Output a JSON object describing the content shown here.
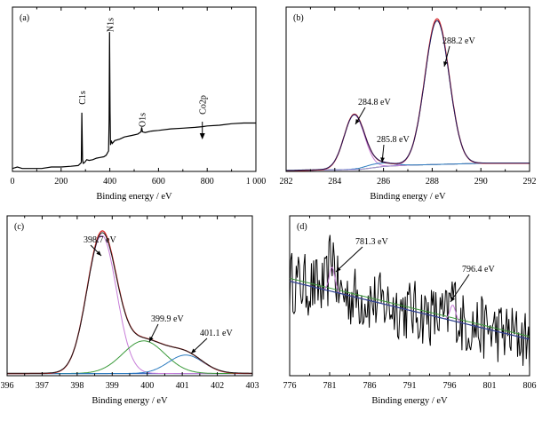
{
  "chart_data": [
    {
      "type": "line",
      "panel_label": "(a)",
      "xlabel": "Binding energy / eV",
      "ylabel": "",
      "xlim": [
        0,
        1000
      ],
      "x_ticks": [
        0,
        200,
        400,
        600,
        800,
        1000
      ],
      "x_tick_labels": [
        "0",
        "200",
        "400",
        "600",
        "800",
        "1 000"
      ],
      "series": [
        {
          "color": "#000000",
          "x": [
            0,
            20,
            40,
            80,
            120,
            160,
            200,
            240,
            270,
            283,
            285,
            288,
            291,
            296,
            305,
            315,
            330,
            345,
            360,
            375,
            385,
            395,
            397,
            399,
            401,
            403,
            406,
            410,
            420,
            440,
            460,
            490,
            515,
            528,
            531,
            534,
            545,
            570,
            600,
            650,
            700,
            750,
            780,
            800,
            850,
            900,
            950,
            1000
          ],
          "y": [
            2,
            3,
            2,
            2,
            2,
            3,
            3,
            3.5,
            4,
            6,
            40,
            8,
            5.5,
            6,
            8,
            7.5,
            8,
            9,
            9.5,
            10,
            11,
            14,
            35,
            95,
            40,
            18,
            21,
            19,
            21,
            22,
            23.5,
            24.5,
            25.5,
            27,
            30,
            27,
            26.5,
            27.5,
            28,
            29,
            29.5,
            30,
            30.5,
            31,
            31.5,
            32.5,
            33,
            33
          ]
        }
      ],
      "annotations": [
        {
          "text": "C1s",
          "x": 285
        },
        {
          "text": "N1s",
          "x": 399
        },
        {
          "text": "O1s",
          "x": 531
        },
        {
          "text": "Co2p",
          "x": 780
        }
      ]
    },
    {
      "type": "line",
      "panel_label": "(b)",
      "xlabel": "Binding energy / eV",
      "ylabel": "",
      "xlim": [
        282,
        292
      ],
      "x_ticks": [
        282,
        284,
        286,
        288,
        290,
        292
      ],
      "x_tick_labels": [
        "282",
        "284",
        "286",
        "288",
        "290",
        "292"
      ],
      "peaks": [
        {
          "center": 284.8,
          "height": 44,
          "sigma": 0.42,
          "label": "284.8 eV",
          "color": "#c77dd8"
        },
        {
          "center": 285.8,
          "height": 3,
          "sigma": 0.55,
          "label": "285.8 eV",
          "color": "#2b7bbf"
        },
        {
          "center": 288.2,
          "height": 117,
          "sigma": 0.5,
          "label": "288.2 eV",
          "color": "#a58ad8"
        }
      ],
      "background": {
        "color": "#3a9a3a",
        "points": [
          [
            282,
            0.5
          ],
          [
            283,
            1
          ],
          [
            285,
            1.5
          ],
          [
            286,
            4
          ],
          [
            287,
            5
          ],
          [
            288,
            5.5
          ],
          [
            289,
            6
          ],
          [
            290,
            6.5
          ],
          [
            291,
            6.5
          ],
          [
            292,
            6.5
          ]
        ]
      },
      "envelope_color": "#d92a2a",
      "measured_color": "#1a1a5c",
      "ylim": [
        0,
        132
      ]
    },
    {
      "type": "line",
      "panel_label": "(c)",
      "xlabel": "Binding energy / eV",
      "ylabel": "",
      "xlim": [
        396,
        403
      ],
      "x_ticks": [
        396,
        397,
        398,
        399,
        400,
        401,
        402,
        403
      ],
      "x_tick_labels": [
        "396",
        "397",
        "398",
        "399",
        "400",
        "401",
        "402",
        "403"
      ],
      "peaks": [
        {
          "center": 398.7,
          "height": 127,
          "sigma": 0.42,
          "label": "398.7 eV",
          "color": "#c77dd8"
        },
        {
          "center": 399.9,
          "height": 30,
          "sigma": 0.6,
          "label": "399.9 eV",
          "color": "#3a9a3a"
        },
        {
          "center": 401.1,
          "height": 17,
          "sigma": 0.5,
          "label": "401.1 eV",
          "color": "#2b7bbf"
        }
      ],
      "background": {
        "color": "#2b5fbf",
        "points": [
          [
            396,
            0
          ],
          [
            403,
            0
          ]
        ]
      },
      "envelope_color": "#d92a2a",
      "measured_color": "#1a1a1a",
      "ylim": [
        -2,
        145
      ]
    },
    {
      "type": "line",
      "panel_label": "(d)",
      "xlabel": "Binding energy / eV",
      "ylabel": "",
      "xlim": [
        776,
        806
      ],
      "x_ticks": [
        776,
        781,
        786,
        791,
        796,
        801,
        806
      ],
      "x_tick_labels": [
        "776",
        "781",
        "786",
        "791",
        "796",
        "801",
        "806"
      ],
      "trend": {
        "start": 55,
        "end": 15
      },
      "noise_amplitude": 22,
      "peaks": [
        {
          "center": 781.3,
          "height": 28,
          "sigma": 0.35,
          "label": "781.3 eV",
          "color": "#c77dd8"
        },
        {
          "center": 796.4,
          "height": 18,
          "sigma": 0.35,
          "label": "796.4 eV",
          "color": "#c77dd8"
        }
      ],
      "background_color": "#3a9a3a",
      "baseline_color": "#2b3f8f",
      "measured_color": "#000000",
      "ylim": [
        -10,
        100
      ]
    }
  ]
}
